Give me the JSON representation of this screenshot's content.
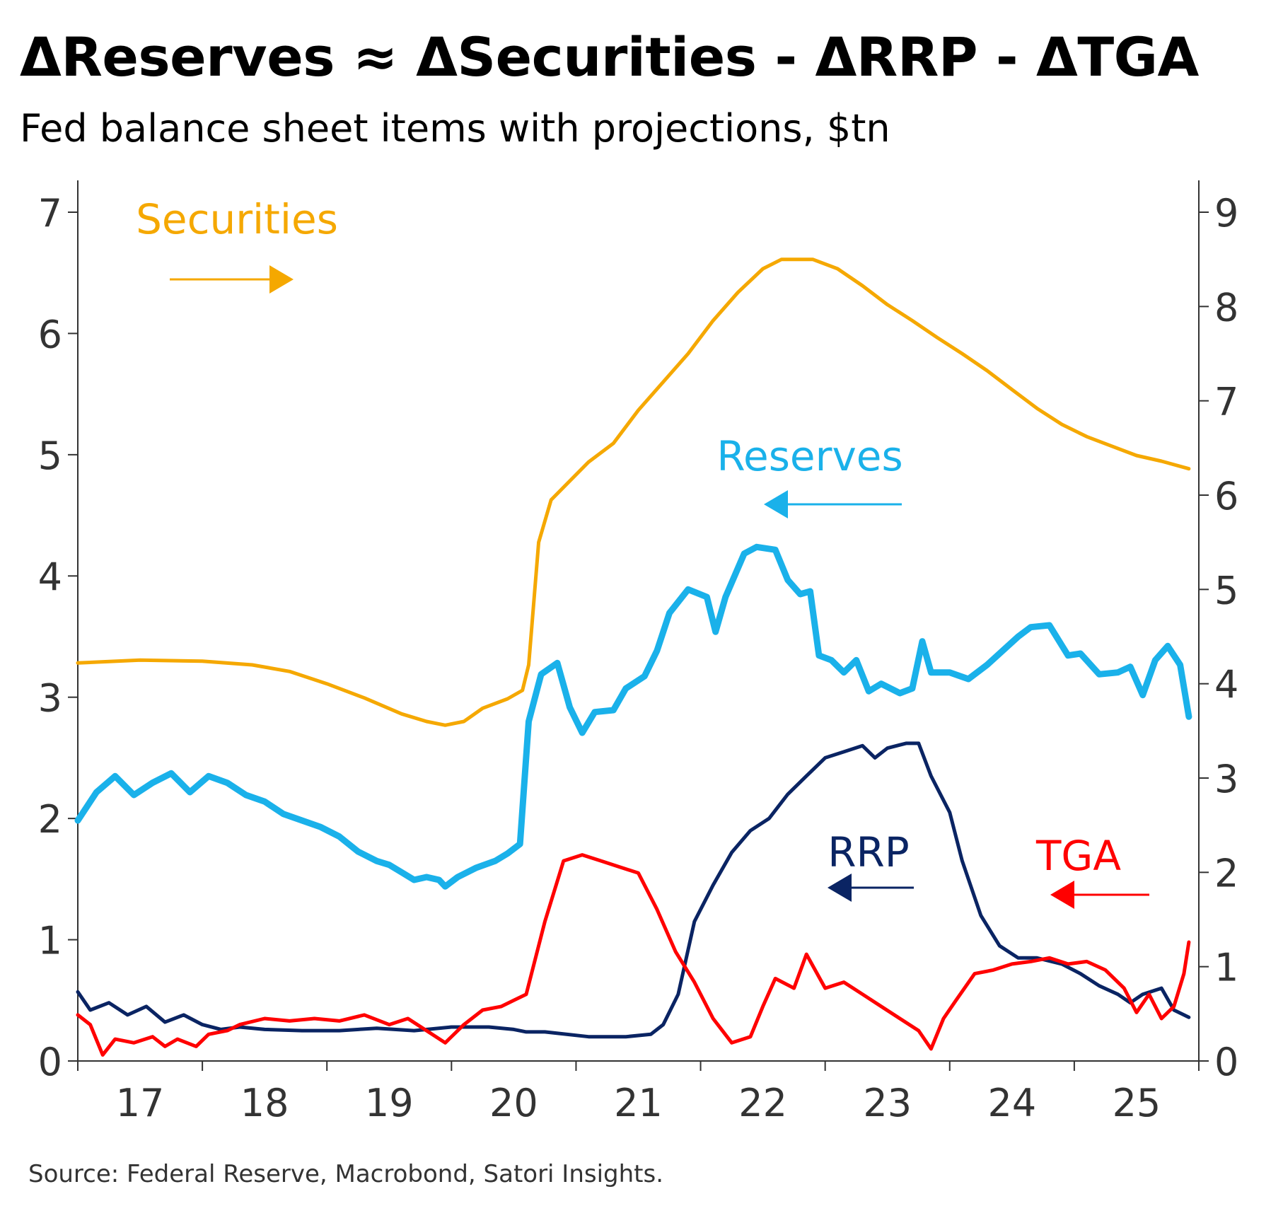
{
  "title": "ΔReserves ≈ ΔSecurities - ΔRRP - ΔTGA",
  "subtitle": "Fed balance sheet items with projections, $tn",
  "source": "Source: Federal Reserve, Macrobond, Satori Insights.",
  "chart_data": {
    "type": "line",
    "title": "ΔReserves ≈ ΔSecurities - ΔRRP - ΔTGA",
    "subtitle": "Fed balance sheet items with projections, $tn",
    "x_axis": {
      "type": "year",
      "min": 2016.5,
      "max": 2025.5,
      "tick_labels": [
        "17",
        "18",
        "19",
        "20",
        "21",
        "22",
        "23",
        "24",
        "25"
      ],
      "tick_values": [
        2017,
        2018,
        2019,
        2020,
        2021,
        2022,
        2023,
        2024,
        2025
      ]
    },
    "y_left": {
      "min": 0,
      "max": 7,
      "ticks": [
        0,
        1,
        2,
        3,
        4,
        5,
        6,
        7
      ]
    },
    "y_right": {
      "min": 0,
      "max": 9,
      "ticks": [
        0,
        1,
        2,
        3,
        4,
        5,
        6,
        7,
        8,
        9
      ]
    },
    "grid": false,
    "series": [
      {
        "name": "Securities",
        "axis": "right",
        "color": "#F5A800",
        "arrow": "right",
        "points": [
          [
            2016.5,
            4.22
          ],
          [
            2017.0,
            4.25
          ],
          [
            2017.5,
            4.24
          ],
          [
            2017.9,
            4.2
          ],
          [
            2018.2,
            4.13
          ],
          [
            2018.5,
            4.0
          ],
          [
            2018.8,
            3.85
          ],
          [
            2019.1,
            3.68
          ],
          [
            2019.3,
            3.6
          ],
          [
            2019.45,
            3.56
          ],
          [
            2019.6,
            3.6
          ],
          [
            2019.75,
            3.74
          ],
          [
            2019.95,
            3.84
          ],
          [
            2020.07,
            3.93
          ],
          [
            2020.12,
            4.2
          ],
          [
            2020.2,
            5.5
          ],
          [
            2020.3,
            5.95
          ],
          [
            2020.45,
            6.15
          ],
          [
            2020.6,
            6.35
          ],
          [
            2020.8,
            6.55
          ],
          [
            2021.0,
            6.9
          ],
          [
            2021.2,
            7.2
          ],
          [
            2021.4,
            7.5
          ],
          [
            2021.6,
            7.85
          ],
          [
            2021.8,
            8.15
          ],
          [
            2022.0,
            8.4
          ],
          [
            2022.15,
            8.5
          ],
          [
            2022.4,
            8.5
          ],
          [
            2022.6,
            8.4
          ],
          [
            2022.8,
            8.22
          ],
          [
            2023.0,
            8.02
          ],
          [
            2023.2,
            7.85
          ],
          [
            2023.4,
            7.67
          ],
          [
            2023.6,
            7.5
          ],
          [
            2023.8,
            7.32
          ],
          [
            2024.0,
            7.12
          ],
          [
            2024.2,
            6.92
          ],
          [
            2024.4,
            6.75
          ],
          [
            2024.6,
            6.62
          ],
          [
            2024.8,
            6.52
          ],
          [
            2025.0,
            6.42
          ],
          [
            2025.2,
            6.36
          ],
          [
            2025.42,
            6.28
          ]
        ]
      },
      {
        "name": "Reserves",
        "axis": "right",
        "color": "#1AB1EA",
        "arrow": "left",
        "points": [
          [
            2016.5,
            2.55
          ],
          [
            2016.65,
            2.85
          ],
          [
            2016.8,
            3.02
          ],
          [
            2016.95,
            2.82
          ],
          [
            2017.1,
            2.95
          ],
          [
            2017.25,
            3.05
          ],
          [
            2017.4,
            2.85
          ],
          [
            2017.55,
            3.02
          ],
          [
            2017.7,
            2.95
          ],
          [
            2017.85,
            2.82
          ],
          [
            2018.0,
            2.75
          ],
          [
            2018.15,
            2.62
          ],
          [
            2018.3,
            2.55
          ],
          [
            2018.45,
            2.48
          ],
          [
            2018.6,
            2.38
          ],
          [
            2018.75,
            2.22
          ],
          [
            2018.9,
            2.12
          ],
          [
            2019.0,
            2.08
          ],
          [
            2019.1,
            2.0
          ],
          [
            2019.2,
            1.92
          ],
          [
            2019.3,
            1.95
          ],
          [
            2019.4,
            1.92
          ],
          [
            2019.45,
            1.85
          ],
          [
            2019.55,
            1.95
          ],
          [
            2019.7,
            2.05
          ],
          [
            2019.85,
            2.12
          ],
          [
            2019.95,
            2.2
          ],
          [
            2020.05,
            2.3
          ],
          [
            2020.12,
            3.6
          ],
          [
            2020.22,
            4.1
          ],
          [
            2020.35,
            4.22
          ],
          [
            2020.45,
            3.75
          ],
          [
            2020.55,
            3.48
          ],
          [
            2020.65,
            3.7
          ],
          [
            2020.8,
            3.72
          ],
          [
            2020.9,
            3.95
          ],
          [
            2021.05,
            4.08
          ],
          [
            2021.15,
            4.35
          ],
          [
            2021.25,
            4.75
          ],
          [
            2021.4,
            5.0
          ],
          [
            2021.55,
            4.92
          ],
          [
            2021.62,
            4.55
          ],
          [
            2021.7,
            4.92
          ],
          [
            2021.85,
            5.38
          ],
          [
            2021.95,
            5.45
          ],
          [
            2022.1,
            5.42
          ],
          [
            2022.2,
            5.1
          ],
          [
            2022.3,
            4.95
          ],
          [
            2022.38,
            4.98
          ],
          [
            2022.45,
            4.3
          ],
          [
            2022.55,
            4.25
          ],
          [
            2022.65,
            4.12
          ],
          [
            2022.75,
            4.25
          ],
          [
            2022.85,
            3.92
          ],
          [
            2022.95,
            4.0
          ],
          [
            2023.1,
            3.9
          ],
          [
            2023.2,
            3.95
          ],
          [
            2023.28,
            4.45
          ],
          [
            2023.35,
            4.12
          ],
          [
            2023.5,
            4.12
          ],
          [
            2023.65,
            4.05
          ],
          [
            2023.8,
            4.2
          ],
          [
            2023.95,
            4.38
          ],
          [
            2024.05,
            4.5
          ],
          [
            2024.15,
            4.6
          ],
          [
            2024.3,
            4.62
          ],
          [
            2024.45,
            4.3
          ],
          [
            2024.55,
            4.32
          ],
          [
            2024.7,
            4.1
          ],
          [
            2024.85,
            4.12
          ],
          [
            2024.95,
            4.18
          ],
          [
            2025.05,
            3.88
          ],
          [
            2025.15,
            4.25
          ],
          [
            2025.25,
            4.4
          ],
          [
            2025.35,
            4.2
          ],
          [
            2025.42,
            3.65
          ]
        ]
      },
      {
        "name": "RRP",
        "axis": "left",
        "color": "#0A2463",
        "arrow": "left",
        "points": [
          [
            2016.5,
            0.57
          ],
          [
            2016.6,
            0.42
          ],
          [
            2016.75,
            0.48
          ],
          [
            2016.9,
            0.38
          ],
          [
            2017.05,
            0.45
          ],
          [
            2017.2,
            0.32
          ],
          [
            2017.35,
            0.38
          ],
          [
            2017.5,
            0.3
          ],
          [
            2017.65,
            0.26
          ],
          [
            2017.8,
            0.28
          ],
          [
            2018.0,
            0.26
          ],
          [
            2018.3,
            0.25
          ],
          [
            2018.6,
            0.25
          ],
          [
            2018.9,
            0.27
          ],
          [
            2019.2,
            0.25
          ],
          [
            2019.5,
            0.28
          ],
          [
            2019.8,
            0.28
          ],
          [
            2020.0,
            0.26
          ],
          [
            2020.1,
            0.24
          ],
          [
            2020.25,
            0.24
          ],
          [
            2020.6,
            0.2
          ],
          [
            2020.9,
            0.2
          ],
          [
            2021.1,
            0.22
          ],
          [
            2021.2,
            0.3
          ],
          [
            2021.32,
            0.55
          ],
          [
            2021.45,
            1.15
          ],
          [
            2021.6,
            1.45
          ],
          [
            2021.75,
            1.72
          ],
          [
            2021.9,
            1.9
          ],
          [
            2022.05,
            2.0
          ],
          [
            2022.2,
            2.2
          ],
          [
            2022.35,
            2.35
          ],
          [
            2022.5,
            2.5
          ],
          [
            2022.65,
            2.55
          ],
          [
            2022.8,
            2.6
          ],
          [
            2022.9,
            2.5
          ],
          [
            2023.0,
            2.58
          ],
          [
            2023.15,
            2.62
          ],
          [
            2023.25,
            2.62
          ],
          [
            2023.35,
            2.35
          ],
          [
            2023.5,
            2.05
          ],
          [
            2023.6,
            1.65
          ],
          [
            2023.75,
            1.2
          ],
          [
            2023.9,
            0.95
          ],
          [
            2024.05,
            0.85
          ],
          [
            2024.2,
            0.85
          ],
          [
            2024.4,
            0.8
          ],
          [
            2024.55,
            0.72
          ],
          [
            2024.7,
            0.62
          ],
          [
            2024.85,
            0.55
          ],
          [
            2024.95,
            0.48
          ],
          [
            2025.05,
            0.55
          ],
          [
            2025.2,
            0.6
          ],
          [
            2025.3,
            0.42
          ],
          [
            2025.42,
            0.36
          ]
        ]
      },
      {
        "name": "TGA",
        "axis": "left",
        "color": "#FF0000",
        "arrow": "left",
        "points": [
          [
            2016.5,
            0.38
          ],
          [
            2016.6,
            0.3
          ],
          [
            2016.7,
            0.05
          ],
          [
            2016.8,
            0.18
          ],
          [
            2016.95,
            0.15
          ],
          [
            2017.1,
            0.2
          ],
          [
            2017.2,
            0.12
          ],
          [
            2017.3,
            0.18
          ],
          [
            2017.45,
            0.12
          ],
          [
            2017.55,
            0.22
          ],
          [
            2017.7,
            0.25
          ],
          [
            2017.8,
            0.3
          ],
          [
            2018.0,
            0.35
          ],
          [
            2018.2,
            0.33
          ],
          [
            2018.4,
            0.35
          ],
          [
            2018.6,
            0.33
          ],
          [
            2018.8,
            0.38
          ],
          [
            2019.0,
            0.3
          ],
          [
            2019.15,
            0.35
          ],
          [
            2019.3,
            0.25
          ],
          [
            2019.45,
            0.15
          ],
          [
            2019.6,
            0.3
          ],
          [
            2019.75,
            0.42
          ],
          [
            2019.9,
            0.45
          ],
          [
            2020.0,
            0.5
          ],
          [
            2020.1,
            0.55
          ],
          [
            2020.25,
            1.15
          ],
          [
            2020.4,
            1.65
          ],
          [
            2020.55,
            1.7
          ],
          [
            2020.7,
            1.65
          ],
          [
            2020.85,
            1.6
          ],
          [
            2021.0,
            1.55
          ],
          [
            2021.15,
            1.25
          ],
          [
            2021.3,
            0.9
          ],
          [
            2021.45,
            0.65
          ],
          [
            2021.6,
            0.35
          ],
          [
            2021.75,
            0.15
          ],
          [
            2021.9,
            0.2
          ],
          [
            2022.0,
            0.45
          ],
          [
            2022.1,
            0.68
          ],
          [
            2022.25,
            0.6
          ],
          [
            2022.35,
            0.88
          ],
          [
            2022.5,
            0.6
          ],
          [
            2022.65,
            0.65
          ],
          [
            2022.8,
            0.55
          ],
          [
            2022.95,
            0.45
          ],
          [
            2023.1,
            0.35
          ],
          [
            2023.25,
            0.25
          ],
          [
            2023.35,
            0.1
          ],
          [
            2023.45,
            0.35
          ],
          [
            2023.55,
            0.5
          ],
          [
            2023.7,
            0.72
          ],
          [
            2023.85,
            0.75
          ],
          [
            2024.0,
            0.8
          ],
          [
            2024.15,
            0.82
          ],
          [
            2024.3,
            0.85
          ],
          [
            2024.45,
            0.8
          ],
          [
            2024.6,
            0.82
          ],
          [
            2024.75,
            0.75
          ],
          [
            2024.9,
            0.6
          ],
          [
            2025.0,
            0.4
          ],
          [
            2025.1,
            0.55
          ],
          [
            2025.2,
            0.35
          ],
          [
            2025.3,
            0.45
          ],
          [
            2025.38,
            0.72
          ],
          [
            2025.42,
            0.98
          ]
        ]
      }
    ]
  }
}
